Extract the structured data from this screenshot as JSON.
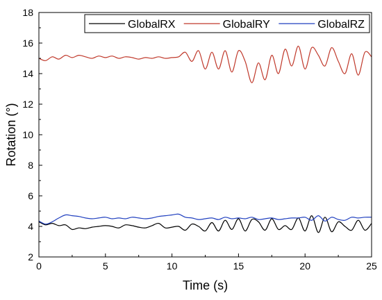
{
  "chart_data": {
    "type": "line",
    "xlabel": "Time (s)",
    "ylabel": "Rotation (°)",
    "xlim": [
      0,
      25
    ],
    "ylim": [
      2,
      18
    ],
    "xticks": [
      0,
      5,
      10,
      15,
      20,
      25
    ],
    "yticks": [
      2,
      4,
      6,
      8,
      10,
      12,
      14,
      16,
      18
    ],
    "grid": false,
    "legend_position": "top-right",
    "x": [
      0,
      0.5,
      1,
      1.5,
      2,
      2.5,
      3,
      3.5,
      4,
      4.5,
      5,
      5.5,
      6,
      6.5,
      7,
      7.5,
      8,
      8.5,
      9,
      9.5,
      10,
      10.5,
      11,
      11.5,
      12,
      12.5,
      13,
      13.5,
      14,
      14.5,
      15,
      15.5,
      16,
      16.5,
      17,
      17.5,
      18,
      18.5,
      19,
      19.5,
      20,
      20.5,
      21,
      21.5,
      22,
      22.5,
      23,
      23.5,
      24,
      24.5,
      25
    ],
    "series": [
      {
        "name": "GlobalRX",
        "color": "#000000",
        "values": [
          4.3,
          4.1,
          4.2,
          4.05,
          4.1,
          3.8,
          3.9,
          3.85,
          3.95,
          4.0,
          4.05,
          4.0,
          3.9,
          4.1,
          4.05,
          3.95,
          3.9,
          4.05,
          4.2,
          3.9,
          3.95,
          4.0,
          3.75,
          4.15,
          4.0,
          3.7,
          4.25,
          3.7,
          4.4,
          3.8,
          4.5,
          3.7,
          4.45,
          4.3,
          3.75,
          4.5,
          3.8,
          4.05,
          3.8,
          4.55,
          3.7,
          4.7,
          3.6,
          4.6,
          3.65,
          4.3,
          4.0,
          3.75,
          4.4,
          3.75,
          4.2
        ]
      },
      {
        "name": "GlobalRY",
        "color": "#c0392b",
        "values": [
          15.0,
          14.85,
          15.1,
          14.95,
          15.2,
          15.05,
          15.2,
          15.1,
          15.0,
          15.15,
          15.05,
          15.15,
          15.0,
          15.1,
          15.05,
          14.95,
          15.05,
          15.0,
          15.1,
          15.0,
          15.05,
          15.1,
          15.4,
          14.8,
          15.5,
          14.3,
          15.4,
          14.3,
          15.5,
          14.1,
          15.5,
          14.8,
          13.4,
          14.7,
          13.6,
          15.2,
          14.0,
          15.6,
          14.5,
          15.8,
          14.3,
          15.7,
          15.2,
          14.5,
          15.7,
          14.8,
          14.0,
          15.3,
          13.9,
          15.4,
          15.1
        ]
      },
      {
        "name": "GlobalRZ",
        "color": "#1f3fbf",
        "values": [
          4.35,
          4.15,
          4.3,
          4.55,
          4.75,
          4.7,
          4.65,
          4.55,
          4.5,
          4.55,
          4.6,
          4.5,
          4.55,
          4.5,
          4.6,
          4.55,
          4.5,
          4.55,
          4.65,
          4.7,
          4.75,
          4.8,
          4.6,
          4.55,
          4.45,
          4.5,
          4.55,
          4.45,
          4.6,
          4.5,
          4.55,
          4.5,
          4.6,
          4.45,
          4.5,
          4.55,
          4.45,
          4.5,
          4.55,
          4.55,
          4.6,
          4.4,
          4.7,
          4.35,
          4.6,
          4.45,
          4.4,
          4.6,
          4.55,
          4.6,
          4.6
        ]
      }
    ]
  }
}
